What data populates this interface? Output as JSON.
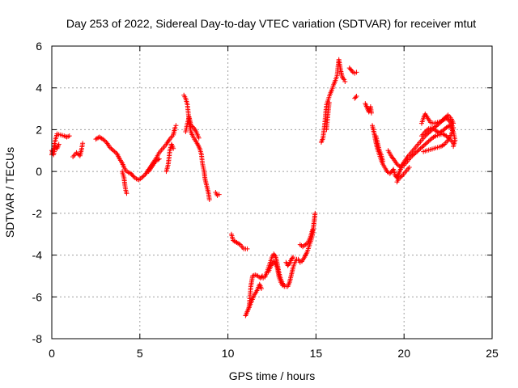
{
  "chart_data": {
    "type": "scatter",
    "title": "Day 253 of 2022, Sidereal Day-to-day VTEC variation (SDTVAR) for receiver mtut",
    "xlabel": "GPS time / hours",
    "ylabel": "SDTVAR / TECUs",
    "xlim": [
      0,
      25
    ],
    "ylim": [
      -8,
      6
    ],
    "xticks": [
      0,
      5,
      10,
      15,
      20,
      25
    ],
    "yticks": [
      -8,
      -6,
      -4,
      -2,
      0,
      2,
      4,
      6
    ],
    "grid": true,
    "marker": "plus",
    "color": "#ff0000",
    "segments": [
      [
        [
          0.0,
          0.8
        ],
        [
          0.1,
          1.1
        ],
        [
          0.2,
          1.5
        ],
        [
          0.3,
          1.8
        ],
        [
          0.5,
          1.75
        ],
        [
          0.7,
          1.7
        ],
        [
          0.85,
          1.65
        ],
        [
          1.0,
          1.7
        ]
      ],
      [
        [
          0.0,
          1.0
        ],
        [
          0.1,
          0.8
        ],
        [
          0.2,
          1.2
        ],
        [
          0.3,
          1.1
        ],
        [
          0.4,
          1.3
        ]
      ],
      [
        [
          1.2,
          0.7
        ],
        [
          1.4,
          0.9
        ],
        [
          1.6,
          0.75
        ],
        [
          1.7,
          1.1
        ],
        [
          1.75,
          1.35
        ]
      ],
      [
        [
          2.5,
          1.55
        ],
        [
          2.7,
          1.65
        ],
        [
          2.9,
          1.55
        ],
        [
          3.1,
          1.4
        ],
        [
          3.3,
          1.15
        ],
        [
          3.5,
          1.0
        ],
        [
          3.7,
          0.85
        ],
        [
          3.85,
          0.6
        ],
        [
          4.0,
          0.4
        ],
        [
          4.1,
          0.2
        ],
        [
          4.2,
          0.05
        ],
        [
          4.35,
          -0.05
        ],
        [
          4.5,
          -0.1
        ],
        [
          4.65,
          -0.25
        ],
        [
          4.8,
          -0.35
        ],
        [
          4.95,
          -0.4
        ],
        [
          5.1,
          -0.3
        ],
        [
          5.3,
          -0.15
        ],
        [
          5.5,
          0.1
        ],
        [
          5.7,
          0.35
        ],
        [
          5.9,
          0.6
        ],
        [
          6.1,
          0.9
        ],
        [
          6.3,
          1.1
        ],
        [
          6.5,
          1.3
        ],
        [
          6.7,
          1.55
        ],
        [
          6.9,
          1.75
        ],
        [
          7.0,
          2.1
        ],
        [
          7.05,
          2.2
        ]
      ],
      [
        [
          4.0,
          0.0
        ],
        [
          4.1,
          -0.3
        ],
        [
          4.15,
          -0.65
        ],
        [
          4.2,
          -0.9
        ],
        [
          4.25,
          -1.05
        ]
      ],
      [
        [
          5.5,
          0.0
        ],
        [
          5.7,
          0.25
        ],
        [
          5.9,
          0.5
        ],
        [
          6.1,
          0.6
        ]
      ],
      [
        [
          6.5,
          0.0
        ],
        [
          6.6,
          0.3
        ],
        [
          6.65,
          0.6
        ],
        [
          6.7,
          1.0
        ],
        [
          6.8,
          1.3
        ],
        [
          6.9,
          1.1
        ]
      ],
      [
        [
          7.5,
          3.65
        ],
        [
          7.6,
          3.5
        ],
        [
          7.7,
          3.2
        ],
        [
          7.75,
          2.8
        ],
        [
          7.8,
          2.3
        ],
        [
          7.9,
          1.9
        ],
        [
          8.0,
          1.7
        ],
        [
          8.1,
          1.55
        ],
        [
          8.25,
          1.35
        ],
        [
          8.4,
          1.1
        ],
        [
          8.5,
          0.8
        ],
        [
          8.55,
          0.4
        ],
        [
          8.65,
          0.0
        ],
        [
          8.7,
          -0.35
        ],
        [
          8.8,
          -0.7
        ],
        [
          8.9,
          -1.05
        ],
        [
          8.95,
          -1.35
        ]
      ],
      [
        [
          7.6,
          1.9
        ],
        [
          7.7,
          2.3
        ],
        [
          7.8,
          2.6
        ],
        [
          7.85,
          2.4
        ],
        [
          7.9,
          2.2
        ],
        [
          8.05,
          2.1
        ],
        [
          8.2,
          1.9
        ],
        [
          8.35,
          1.6
        ]
      ],
      [
        [
          9.3,
          -1.0
        ],
        [
          9.4,
          -1.15
        ],
        [
          9.5,
          -1.1
        ]
      ],
      [
        [
          10.2,
          -3.0
        ],
        [
          10.3,
          -3.3
        ],
        [
          10.5,
          -3.4
        ],
        [
          10.7,
          -3.5
        ],
        [
          10.9,
          -3.7
        ],
        [
          11.1,
          -3.7
        ]
      ],
      [
        [
          11.0,
          -6.9
        ],
        [
          11.1,
          -6.7
        ],
        [
          11.2,
          -6.5
        ],
        [
          11.25,
          -6.0
        ],
        [
          11.3,
          -5.5
        ],
        [
          11.4,
          -5.0
        ],
        [
          11.55,
          -4.95
        ],
        [
          11.7,
          -5.0
        ],
        [
          11.85,
          -5.1
        ],
        [
          11.95,
          -5.0
        ]
      ],
      [
        [
          11.2,
          -6.5
        ],
        [
          11.35,
          -6.2
        ],
        [
          11.5,
          -5.9
        ],
        [
          11.65,
          -5.7
        ],
        [
          11.8,
          -5.4
        ],
        [
          11.9,
          -5.6
        ]
      ],
      [
        [
          11.9,
          -5.05
        ],
        [
          12.0,
          -5.1
        ],
        [
          12.1,
          -5.05
        ],
        [
          12.2,
          -4.85
        ],
        [
          12.3,
          -4.6
        ],
        [
          12.4,
          -4.35
        ],
        [
          12.5,
          -4.1
        ],
        [
          12.6,
          -3.95
        ],
        [
          12.7,
          -4.05
        ],
        [
          12.8,
          -4.4
        ],
        [
          12.9,
          -4.85
        ],
        [
          13.0,
          -5.15
        ],
        [
          13.1,
          -5.35
        ],
        [
          13.2,
          -5.45
        ],
        [
          13.3,
          -5.5
        ],
        [
          13.4,
          -5.5
        ],
        [
          13.5,
          -5.3
        ],
        [
          13.6,
          -4.95
        ],
        [
          13.7,
          -4.6
        ],
        [
          13.8,
          -4.35
        ],
        [
          13.9,
          -4.2
        ],
        [
          14.0,
          -4.2
        ],
        [
          14.1,
          -4.35
        ],
        [
          14.2,
          -4.3
        ],
        [
          14.35,
          -4.1
        ],
        [
          14.5,
          -3.85
        ],
        [
          14.6,
          -3.6
        ],
        [
          14.7,
          -3.35
        ],
        [
          14.8,
          -3.05
        ],
        [
          14.85,
          -2.7
        ],
        [
          14.9,
          -2.35
        ],
        [
          14.95,
          -2.0
        ]
      ],
      [
        [
          12.3,
          -4.8
        ],
        [
          12.45,
          -4.5
        ],
        [
          12.6,
          -4.3
        ],
        [
          12.8,
          -4.6
        ],
        [
          12.9,
          -5.05
        ],
        [
          13.0,
          -5.3
        ],
        [
          13.1,
          -5.45
        ],
        [
          13.2,
          -5.5
        ]
      ],
      [
        [
          13.3,
          -4.35
        ],
        [
          13.4,
          -4.5
        ],
        [
          13.5,
          -4.4
        ],
        [
          13.6,
          -4.2
        ],
        [
          13.7,
          -4.1
        ]
      ],
      [
        [
          14.1,
          -3.5
        ],
        [
          14.25,
          -3.6
        ],
        [
          14.4,
          -3.5
        ],
        [
          14.55,
          -3.4
        ],
        [
          14.7,
          -3.1
        ],
        [
          14.8,
          -2.8
        ]
      ],
      [
        [
          15.3,
          1.4
        ],
        [
          15.4,
          1.6
        ],
        [
          15.5,
          2.3
        ],
        [
          15.55,
          2.8
        ],
        [
          15.6,
          3.2
        ],
        [
          15.7,
          3.45
        ],
        [
          15.8,
          3.7
        ],
        [
          15.9,
          3.9
        ],
        [
          16.0,
          4.15
        ],
        [
          16.1,
          4.35
        ],
        [
          16.2,
          4.6
        ],
        [
          16.25,
          5.0
        ],
        [
          16.3,
          5.35
        ],
        [
          16.4,
          4.85
        ],
        [
          16.5,
          4.5
        ],
        [
          16.6,
          4.4
        ],
        [
          16.65,
          4.3
        ]
      ],
      [
        [
          15.6,
          2.0
        ],
        [
          15.65,
          2.5
        ],
        [
          15.7,
          2.9
        ],
        [
          15.75,
          3.3
        ]
      ],
      [
        [
          16.9,
          4.95
        ],
        [
          17.0,
          4.85
        ],
        [
          17.1,
          4.75
        ],
        [
          17.2,
          4.7
        ],
        [
          17.3,
          4.75
        ]
      ],
      [
        [
          17.2,
          3.5
        ],
        [
          17.3,
          3.6
        ]
      ],
      [
        [
          17.8,
          3.25
        ],
        [
          17.9,
          3.05
        ],
        [
          18.0,
          2.85
        ],
        [
          18.1,
          3.1
        ],
        [
          18.15,
          2.8
        ]
      ],
      [
        [
          18.2,
          2.2
        ],
        [
          18.3,
          1.85
        ],
        [
          18.4,
          1.4
        ],
        [
          18.5,
          1.05
        ],
        [
          18.6,
          0.8
        ],
        [
          18.7,
          0.55
        ],
        [
          18.8,
          0.35
        ],
        [
          18.9,
          0.2
        ],
        [
          19.0,
          0.05
        ],
        [
          19.1,
          -0.05
        ],
        [
          19.2,
          -0.1
        ],
        [
          19.3,
          0.0
        ],
        [
          19.4,
          0.1
        ],
        [
          19.5,
          -0.2
        ],
        [
          19.6,
          -0.3
        ],
        [
          19.7,
          -0.1
        ],
        [
          19.8,
          0.1
        ],
        [
          19.9,
          0.25
        ],
        [
          20.0,
          0.3
        ],
        [
          20.2,
          0.5
        ],
        [
          20.4,
          0.7
        ],
        [
          20.6,
          0.85
        ],
        [
          20.8,
          1.0
        ],
        [
          21.0,
          1.15
        ],
        [
          21.2,
          1.3
        ],
        [
          21.4,
          1.45
        ],
        [
          21.6,
          1.6
        ],
        [
          21.8,
          1.7
        ],
        [
          22.0,
          1.75
        ],
        [
          22.2,
          1.8
        ],
        [
          22.4,
          1.7
        ],
        [
          22.6,
          1.55
        ],
        [
          22.8,
          1.35
        ]
      ],
      [
        [
          18.4,
          1.7
        ],
        [
          18.5,
          1.35
        ],
        [
          18.6,
          1.0
        ],
        [
          18.7,
          0.8
        ],
        [
          18.8,
          0.5
        ]
      ],
      [
        [
          19.1,
          1.0
        ],
        [
          19.2,
          0.85
        ],
        [
          19.3,
          0.7
        ],
        [
          19.4,
          0.6
        ],
        [
          19.6,
          0.35
        ],
        [
          19.8,
          0.2
        ],
        [
          20.0,
          0.45
        ],
        [
          20.2,
          0.7
        ],
        [
          20.4,
          0.9
        ],
        [
          20.6,
          1.1
        ],
        [
          20.8,
          1.3
        ],
        [
          21.0,
          1.5
        ],
        [
          21.2,
          1.7
        ],
        [
          21.4,
          1.85
        ],
        [
          21.6,
          2.0
        ],
        [
          21.8,
          2.15
        ],
        [
          22.0,
          2.3
        ],
        [
          22.2,
          2.45
        ],
        [
          22.4,
          2.55
        ],
        [
          22.6,
          2.4
        ],
        [
          22.8,
          2.1
        ],
        [
          22.7,
          1.8
        ],
        [
          22.5,
          1.5
        ],
        [
          22.3,
          1.3
        ],
        [
          22.1,
          1.2
        ],
        [
          21.9,
          1.15
        ],
        [
          21.7,
          1.1
        ],
        [
          21.5,
          1.05
        ],
        [
          21.3,
          1.0
        ],
        [
          21.1,
          0.95
        ]
      ],
      [
        [
          21.0,
          2.3
        ],
        [
          21.1,
          2.55
        ],
        [
          21.2,
          2.75
        ],
        [
          21.35,
          2.55
        ],
        [
          21.5,
          2.35
        ],
        [
          21.7,
          2.3
        ],
        [
          21.9,
          2.35
        ],
        [
          22.1,
          2.4
        ],
        [
          22.3,
          2.55
        ],
        [
          22.5,
          2.7
        ],
        [
          22.7,
          2.5
        ],
        [
          22.8,
          2.3
        ]
      ],
      [
        [
          19.6,
          -0.5
        ],
        [
          19.7,
          -0.35
        ],
        [
          19.9,
          -0.2
        ],
        [
          20.1,
          0.0
        ],
        [
          20.3,
          0.2
        ]
      ],
      [
        [
          21.0,
          1.7
        ],
        [
          21.2,
          1.9
        ],
        [
          21.4,
          2.05
        ],
        [
          21.6,
          2.1
        ],
        [
          21.8,
          1.95
        ],
        [
          22.0,
          1.85
        ],
        [
          22.2,
          1.95
        ],
        [
          22.4,
          2.1
        ],
        [
          22.6,
          2.2
        ],
        [
          22.8,
          1.9
        ],
        [
          22.9,
          1.5
        ],
        [
          22.8,
          1.2
        ]
      ]
    ]
  }
}
